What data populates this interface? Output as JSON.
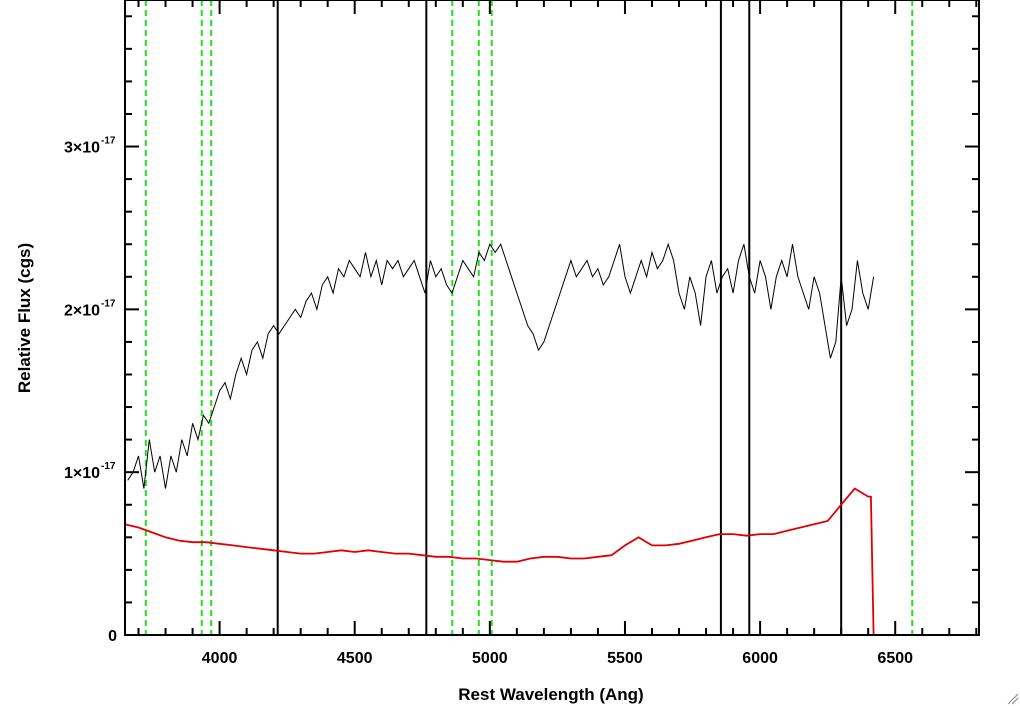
{
  "chart_data": {
    "type": "line",
    "title": "",
    "xlabel": "Rest Wavelength (Ang)",
    "ylabel": "Relative Flux (cgs)",
    "xlim": [
      3650,
      6810
    ],
    "ylim": [
      0,
      3.9e-17
    ],
    "x_ticks": [
      4000,
      4500,
      5000,
      5500,
      6000,
      6500
    ],
    "x_tick_labels": [
      "4000",
      "4500",
      "5000",
      "5500",
      "6000",
      "6500"
    ],
    "y_ticks": [
      0,
      1e-17,
      2e-17,
      3e-17
    ],
    "y_tick_labels": [
      {
        "mantissa": "0",
        "exponent": ""
      },
      {
        "mantissa": "1×10",
        "exponent": "-17"
      },
      {
        "mantissa": "2×10",
        "exponent": "-17"
      },
      {
        "mantissa": "3×10",
        "exponent": "-17"
      }
    ],
    "grid": false,
    "legend": "none",
    "series": [
      {
        "color": "#000000",
        "description_trend": "noisy observed spectrum",
        "x": [
          3660,
          3680,
          3700,
          3720,
          3740,
          3760,
          3780,
          3800,
          3820,
          3840,
          3860,
          3880,
          3900,
          3920,
          3940,
          3960,
          3980,
          4000,
          4020,
          4040,
          4060,
          4080,
          4100,
          4120,
          4140,
          4160,
          4180,
          4200,
          4220,
          4240,
          4260,
          4280,
          4300,
          4320,
          4340,
          4360,
          4380,
          4400,
          4420,
          4440,
          4460,
          4480,
          4500,
          4520,
          4540,
          4560,
          4580,
          4600,
          4620,
          4640,
          4660,
          4680,
          4700,
          4720,
          4740,
          4760,
          4780,
          4800,
          4820,
          4840,
          4860,
          4880,
          4900,
          4920,
          4940,
          4960,
          4980,
          5000,
          5020,
          5040,
          5060,
          5080,
          5100,
          5120,
          5140,
          5160,
          5180,
          5200,
          5220,
          5240,
          5260,
          5280,
          5300,
          5320,
          5340,
          5360,
          5380,
          5400,
          5420,
          5440,
          5460,
          5480,
          5500,
          5520,
          5540,
          5560,
          5580,
          5600,
          5620,
          5640,
          5660,
          5680,
          5700,
          5720,
          5740,
          5760,
          5780,
          5800,
          5820,
          5840,
          5860,
          5880,
          5900,
          5920,
          5940,
          5960,
          5980,
          6000,
          6020,
          6040,
          6060,
          6080,
          6100,
          6120,
          6140,
          6160,
          6180,
          6200,
          6220,
          6240,
          6260,
          6280,
          6300,
          6320,
          6340,
          6360,
          6380,
          6400,
          6420
        ],
        "y": [
          9.5e-18,
          1e-17,
          1.1e-17,
          9e-18,
          1.2e-17,
          1e-17,
          1.1e-17,
          9e-18,
          1.1e-17,
          1e-17,
          1.2e-17,
          1.1e-17,
          1.3e-17,
          1.2e-17,
          1.35e-17,
          1.3e-17,
          1.4e-17,
          1.5e-17,
          1.55e-17,
          1.45e-17,
          1.6e-17,
          1.7e-17,
          1.6e-17,
          1.75e-17,
          1.8e-17,
          1.7e-17,
          1.85e-17,
          1.9e-17,
          1.85e-17,
          1.9e-17,
          1.95e-17,
          2e-17,
          1.95e-17,
          2.05e-17,
          2.1e-17,
          2e-17,
          2.15e-17,
          2.2e-17,
          2.1e-17,
          2.25e-17,
          2.2e-17,
          2.3e-17,
          2.25e-17,
          2.2e-17,
          2.35e-17,
          2.2e-17,
          2.3e-17,
          2.15e-17,
          2.3e-17,
          2.25e-17,
          2.3e-17,
          2.2e-17,
          2.25e-17,
          2.3e-17,
          2.2e-17,
          2.1e-17,
          2.3e-17,
          2.2e-17,
          2.25e-17,
          2.15e-17,
          2.1e-17,
          2.2e-17,
          2.3e-17,
          2.25e-17,
          2.2e-17,
          2.35e-17,
          2.3e-17,
          2.4e-17,
          2.35e-17,
          2.4e-17,
          2.3e-17,
          2.2e-17,
          2.1e-17,
          2e-17,
          1.9e-17,
          1.85e-17,
          1.75e-17,
          1.8e-17,
          1.9e-17,
          2e-17,
          2.1e-17,
          2.2e-17,
          2.3e-17,
          2.2e-17,
          2.25e-17,
          2.3e-17,
          2.2e-17,
          2.25e-17,
          2.15e-17,
          2.2e-17,
          2.3e-17,
          2.4e-17,
          2.2e-17,
          2.1e-17,
          2.2e-17,
          2.3e-17,
          2.2e-17,
          2.35e-17,
          2.25e-17,
          2.3e-17,
          2.4e-17,
          2.3e-17,
          2.1e-17,
          2e-17,
          2.2e-17,
          2.1e-17,
          1.9e-17,
          2.2e-17,
          2.3e-17,
          2.1e-17,
          2.2e-17,
          2.25e-17,
          2.1e-17,
          2.3e-17,
          2.4e-17,
          2.2e-17,
          2.1e-17,
          2.3e-17,
          2.2e-17,
          2e-17,
          2.2e-17,
          2.3e-17,
          2.2e-17,
          2.4e-17,
          2.2e-17,
          2.1e-17,
          2e-17,
          2.2e-17,
          2.1e-17,
          1.9e-17,
          1.7e-17,
          1.8e-17,
          2.2e-17,
          1.9e-17,
          2e-17,
          2.3e-17,
          2.1e-17,
          2e-17,
          2.2e-17
        ]
      },
      {
        "color": "#e00000",
        "description_trend": "model / noise spectrum",
        "x": [
          3650,
          3700,
          3750,
          3800,
          3850,
          3900,
          3950,
          4000,
          4050,
          4100,
          4150,
          4200,
          4250,
          4300,
          4350,
          4400,
          4450,
          4500,
          4550,
          4600,
          4650,
          4700,
          4750,
          4800,
          4850,
          4900,
          4950,
          5000,
          5050,
          5100,
          5150,
          5200,
          5250,
          5300,
          5350,
          5400,
          5450,
          5500,
          5550,
          5600,
          5650,
          5700,
          5750,
          5800,
          5850,
          5900,
          5950,
          6000,
          6050,
          6100,
          6150,
          6200,
          6250,
          6300,
          6350,
          6400,
          6410,
          6420,
          6500,
          6600,
          6700,
          6810
        ],
        "y": [
          6.8e-18,
          6.6e-18,
          6.3e-18,
          6e-18,
          5.8e-18,
          5.7e-18,
          5.7e-18,
          5.6e-18,
          5.5e-18,
          5.4e-18,
          5.3e-18,
          5.2e-18,
          5.1e-18,
          5e-18,
          5e-18,
          5.1e-18,
          5.2e-18,
          5.1e-18,
          5.2e-18,
          5.1e-18,
          5e-18,
          5e-18,
          4.9e-18,
          4.8e-18,
          4.8e-18,
          4.7e-18,
          4.7e-18,
          4.6e-18,
          4.5e-18,
          4.5e-18,
          4.7e-18,
          4.8e-18,
          4.8e-18,
          4.7e-18,
          4.7e-18,
          4.8e-18,
          4.9e-18,
          5.5e-18,
          6e-18,
          5.5e-18,
          5.5e-18,
          5.6e-18,
          5.8e-18,
          6e-18,
          6.2e-18,
          6.2e-18,
          6.1e-18,
          6.2e-18,
          6.2e-18,
          6.4e-18,
          6.6e-18,
          6.8e-18,
          7e-18,
          8e-18,
          9e-18,
          8.5e-18,
          8.5e-18,
          0.0,
          0.0,
          0.0,
          0.0,
          0.0
        ]
      }
    ],
    "vertical_markers_green_dashed": [
      3727,
      3934,
      3969,
      4861,
      4959,
      5007,
      6563
    ],
    "vertical_markers_black": [
      4215,
      4765,
      5855,
      5960,
      6300
    ]
  }
}
